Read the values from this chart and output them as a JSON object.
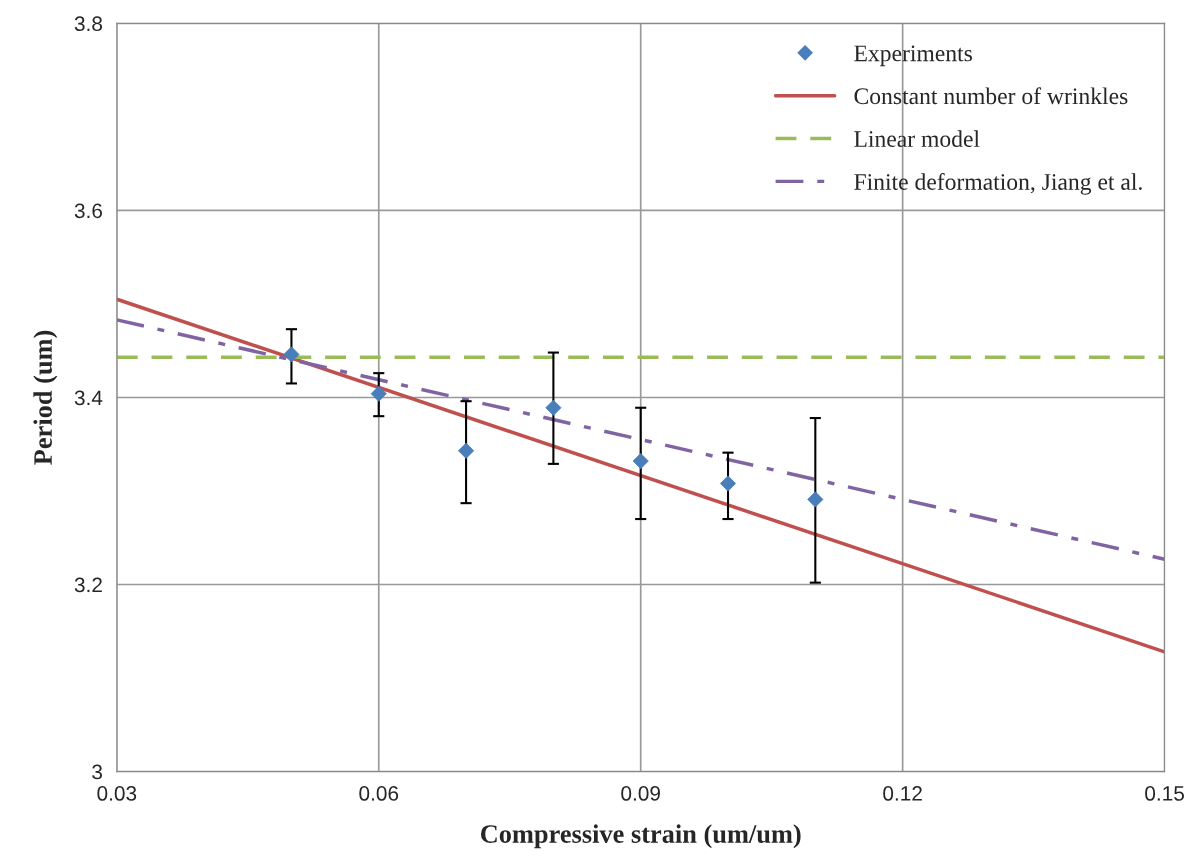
{
  "chart_data": {
    "type": "line",
    "xlabel": "Compressive strain (um/um)",
    "ylabel": "Period (um)",
    "xlim": [
      0.03,
      0.15
    ],
    "xticks": [
      0.03,
      0.06,
      0.09,
      0.12,
      0.15
    ],
    "ylim": [
      3,
      3.8
    ],
    "yticks": [
      3,
      3.2,
      3.4,
      3.6,
      3.8
    ],
    "grid": true,
    "legend": "top right",
    "series": [
      {
        "name": "Experiments",
        "type": "scatter",
        "marker": "diamond",
        "color": "#4a7ebb",
        "x": [
          0.05,
          0.06,
          0.07,
          0.08,
          0.09,
          0.1,
          0.11
        ],
        "values": [
          3.446,
          3.404,
          3.343,
          3.389,
          3.332,
          3.308,
          3.291
        ],
        "errors": [
          [
            3.415,
            3.473
          ],
          [
            3.38,
            3.426
          ],
          [
            3.287,
            3.396
          ],
          [
            3.329,
            3.448
          ],
          [
            3.27,
            3.389
          ],
          [
            3.27,
            3.341
          ],
          [
            3.202,
            3.378
          ]
        ]
      },
      {
        "name": "Constant number of wrinkles",
        "line_style": "solid",
        "color": "#c0504d",
        "x": [
          0.03,
          0.15
        ],
        "values": [
          3.505,
          3.128
        ]
      },
      {
        "name": "Linear model",
        "line_style": "dashed",
        "color": "#9bbb59",
        "x": [
          0.03,
          0.15
        ],
        "values": [
          3.443,
          3.443
        ]
      },
      {
        "name": "Finite deformation, Jiang et al.",
        "line_style": "dashdot",
        "color": "#8064a2",
        "x": [
          0.03,
          0.15
        ],
        "values": [
          3.483,
          3.227
        ]
      }
    ]
  }
}
